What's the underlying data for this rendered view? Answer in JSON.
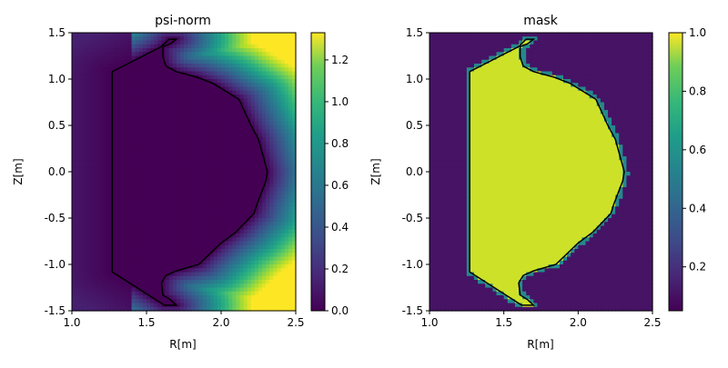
{
  "chart_data": [
    {
      "type": "heatmap",
      "title": "psi-norm",
      "xlabel": "R[m]",
      "ylabel": "Z[m]",
      "xlim": [
        1.0,
        2.5
      ],
      "ylim": [
        -1.5,
        1.5
      ],
      "xticks": [
        "1.0",
        "1.5",
        "2.0",
        "2.5"
      ],
      "yticks": [
        "1.5",
        "1.0",
        "0.5",
        "0.0",
        "-0.5",
        "-1.0",
        "-1.5"
      ],
      "colorbar": {
        "min": 0.0,
        "max": 1.33,
        "ticks": [
          "0.0",
          "0.2",
          "0.4",
          "0.6",
          "0.8",
          "1.0",
          "1.2"
        ],
        "colormap": "viridis"
      }
    },
    {
      "type": "heatmap",
      "title": "mask",
      "xlabel": "R[m]",
      "ylabel": "Z[m]",
      "xlim": [
        1.0,
        2.5
      ],
      "ylim": [
        -1.5,
        1.5
      ],
      "xticks": [
        "1.0",
        "1.5",
        "2.0",
        "2.5"
      ],
      "yticks": [
        "1.5",
        "1.0",
        "0.5",
        "0.0",
        "-0.5",
        "-1.0",
        "-1.5"
      ],
      "colorbar": {
        "min": 0.05,
        "max": 1.0,
        "ticks": [
          "1.0",
          "0.8",
          "0.6",
          "0.4",
          "0.2"
        ],
        "colormap": "viridis"
      }
    }
  ],
  "boundary": [
    [
      1.27,
      1.08
    ],
    [
      1.6,
      1.35
    ],
    [
      1.65,
      1.43
    ],
    [
      1.7,
      1.43
    ],
    [
      1.66,
      1.38
    ],
    [
      1.61,
      1.35
    ],
    [
      1.61,
      1.24
    ],
    [
      1.63,
      1.14
    ],
    [
      1.7,
      1.08
    ],
    [
      1.84,
      1.02
    ],
    [
      1.95,
      0.95
    ],
    [
      2.05,
      0.85
    ],
    [
      2.12,
      0.78
    ],
    [
      2.2,
      0.5
    ],
    [
      2.25,
      0.35
    ],
    [
      2.29,
      0.12
    ],
    [
      2.31,
      0.0
    ],
    [
      2.3,
      -0.1
    ],
    [
      2.24,
      -0.35
    ],
    [
      2.22,
      -0.45
    ],
    [
      2.1,
      -0.65
    ],
    [
      2.0,
      -0.77
    ],
    [
      1.85,
      -1.0
    ],
    [
      1.7,
      -1.07
    ],
    [
      1.63,
      -1.12
    ],
    [
      1.6,
      -1.2
    ],
    [
      1.61,
      -1.33
    ],
    [
      1.66,
      -1.38
    ],
    [
      1.7,
      -1.44
    ],
    [
      1.62,
      -1.44
    ],
    [
      1.27,
      -1.08
    ],
    [
      1.27,
      1.08
    ]
  ]
}
